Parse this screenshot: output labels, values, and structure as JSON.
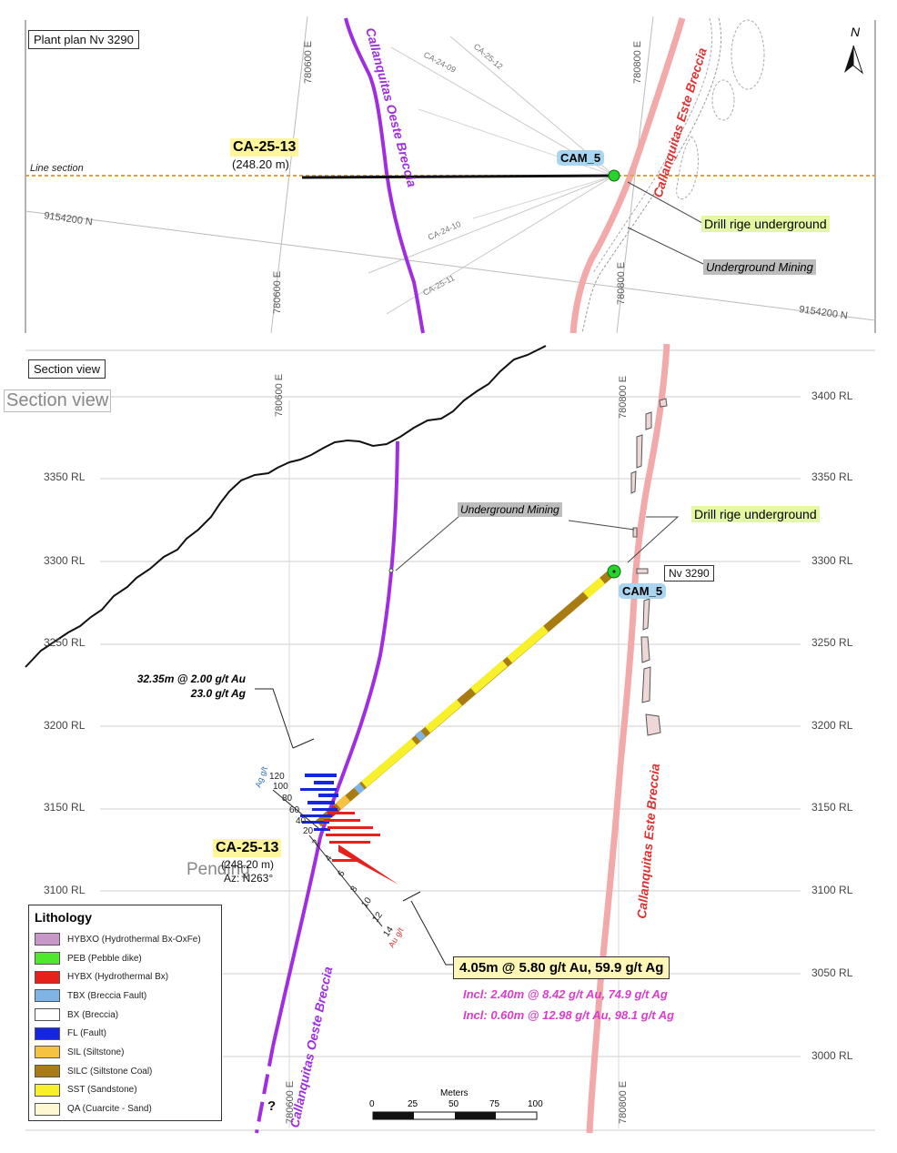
{
  "plan": {
    "title": "Plant plan Nv 3290",
    "north": "N",
    "line_section": "Line section",
    "hole_label": "CA-25-13",
    "hole_depth": "(248.20 m)",
    "station": "CAM_5",
    "drill_label": "Drill rige underground",
    "mining_label": "Underground Mining",
    "breccia_west": "Callanquitas Oeste Breccia",
    "breccia_east": "Callanquitas Este Breccia",
    "easting_a": "780600 E",
    "easting_b": "780800 E",
    "northing": "9154200 N",
    "other_holes": [
      "CA-25-12",
      "CA-24-09",
      "CA-24-10",
      "CA-25-11"
    ]
  },
  "section": {
    "title": "Section view",
    "ghost_title": "Section view",
    "easting_a": "780600 E",
    "easting_b": "780800 E",
    "rl_labels": [
      "3400 RL",
      "3350 RL",
      "3300 RL",
      "3250 RL",
      "3200 RL",
      "3150 RL",
      "3100 RL",
      "3050 RL",
      "3000 RL"
    ],
    "level_label": "Nv 3290",
    "station": "CAM_5",
    "drill_label": "Drill rige underground",
    "mining_label": "Underground Mining",
    "breccia_west": "Callanquitas Oeste Breccia",
    "breccia_east": "Callanquitas Este Breccia",
    "hole_label": "CA-25-13",
    "hole_depth": "(248.20 m)",
    "azimuth": "Az: N263°",
    "pending": "Pending",
    "question": "?",
    "upper_intercept": [
      "32.35m @ 2.00 g/t Au",
      "23.0 g/t Ag"
    ],
    "main_result": "4.05m @ 5.80 g/t Au, 59.9 g/t Ag",
    "incl_1": "Incl: 2.40m @ 8.42 g/t Au, 74.9 g/t Ag",
    "incl_2": "Incl: 0.60m @ 12.98 g/t Au, 98.1 g/t Ag",
    "ag_axis_label": "Ag g/t",
    "ag_ticks": [
      "120",
      "100",
      "80",
      "60",
      "40",
      "20"
    ],
    "au_axis_label": "Au g/t",
    "au_ticks": [
      "2",
      "4",
      "6",
      "8",
      "10",
      "12",
      "14"
    ]
  },
  "legend": {
    "title": "Lithology",
    "items": [
      {
        "label": "HYBXO (Hydrothermal Bx-OxFe)",
        "color": "#c896c8"
      },
      {
        "label": "PEB (Pebble dike)",
        "color": "#4ee82c"
      },
      {
        "label": "HYBX (Hydrothermal Bx)",
        "color": "#e8201c"
      },
      {
        "label": "TBX (Breccia Fault)",
        "color": "#7fb4e6"
      },
      {
        "label": "BX (Breccia)",
        "color": "#ffffff"
      },
      {
        "label": "FL (Fault)",
        "color": "#1426e0"
      },
      {
        "label": "SIL (Siltstone)",
        "color": "#f5c242"
      },
      {
        "label": "SILC (Siltstone Coal)",
        "color": "#a87c12"
      },
      {
        "label": "SST (Sandstone)",
        "color": "#f7f02a"
      },
      {
        "label": "QA (Cuarcite - Sand)",
        "color": "#fff8d2"
      }
    ]
  },
  "scale": {
    "unit": "Meters",
    "ticks": [
      "0",
      "25",
      "50",
      "75",
      "100"
    ]
  },
  "colors": {
    "west_breccia": "#a02ee0",
    "east_breccia": "#f3a9a9",
    "east_text": "#e03232",
    "section_line": "#e8a12a",
    "green": "#27d42b"
  }
}
